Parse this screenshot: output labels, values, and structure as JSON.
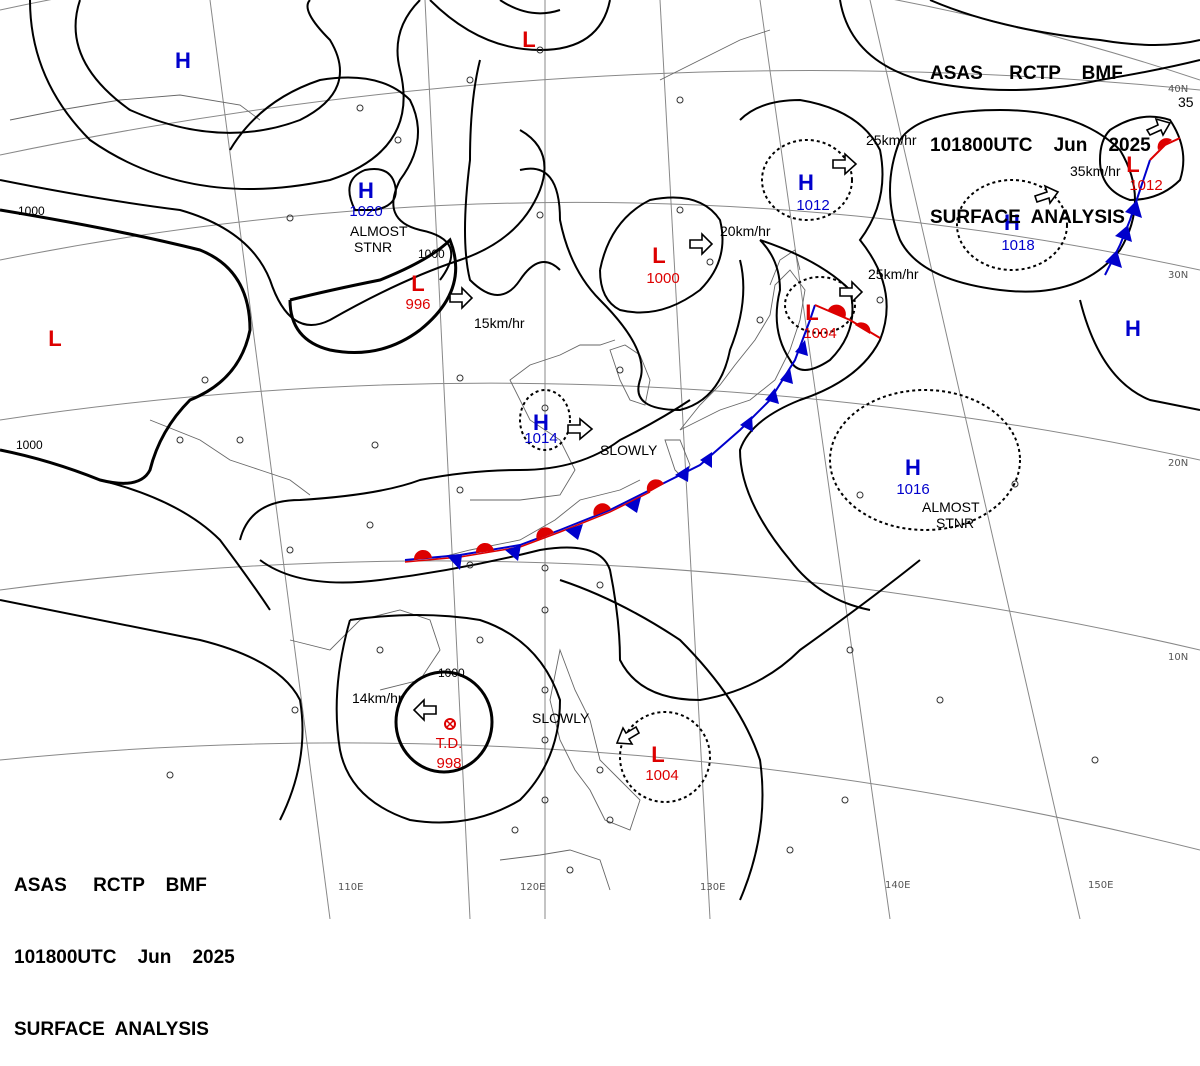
{
  "header": {
    "line1": "ASAS     RCTP    BMF",
    "line2": "101800UTC    Jun    2025",
    "line3": "SURFACE  ANALYSIS"
  },
  "colors": {
    "high": "#0000cc",
    "low": "#dd0000",
    "cold_front": "#0000cc",
    "warm_front": "#dd0000",
    "isobar": "#000000",
    "grid": "#888888",
    "coast": "#666666"
  },
  "grid_labels": {
    "longitudes": [
      "110E",
      "120E",
      "130E",
      "140E",
      "150E"
    ],
    "latitudes": [
      "40N",
      "30N",
      "20N",
      "10N"
    ]
  },
  "pressure_centers": [
    {
      "type": "H",
      "value": ""
    },
    {
      "type": "H",
      "value": "1020"
    },
    {
      "type": "L",
      "value": ""
    },
    {
      "type": "L",
      "value": "996"
    },
    {
      "type": "L",
      "value": ""
    },
    {
      "type": "L",
      "value": "1000"
    },
    {
      "type": "H",
      "value": "1012"
    },
    {
      "type": "H",
      "value": "1018"
    },
    {
      "type": "L",
      "value": "1012"
    },
    {
      "type": "L",
      "value": "1004"
    },
    {
      "type": "H",
      "value": ""
    },
    {
      "type": "H",
      "value": "1014"
    },
    {
      "type": "H",
      "value": "1016"
    },
    {
      "type": "L",
      "value": "1004"
    }
  ],
  "tropical_depression": {
    "label": "T.D.",
    "value": "998"
  },
  "annotations": [
    "ALMOST\nSTNR",
    "15km/hr",
    "20km/hr",
    "25km/hr",
    "25km/hr",
    "35km/hr",
    "SLOWLY",
    "ALMOST\nSTNR",
    "14km/hr",
    "SLOWLY",
    "35"
  ],
  "isobar_labels": [
    "1000",
    "1000",
    "1000",
    "1000"
  ]
}
